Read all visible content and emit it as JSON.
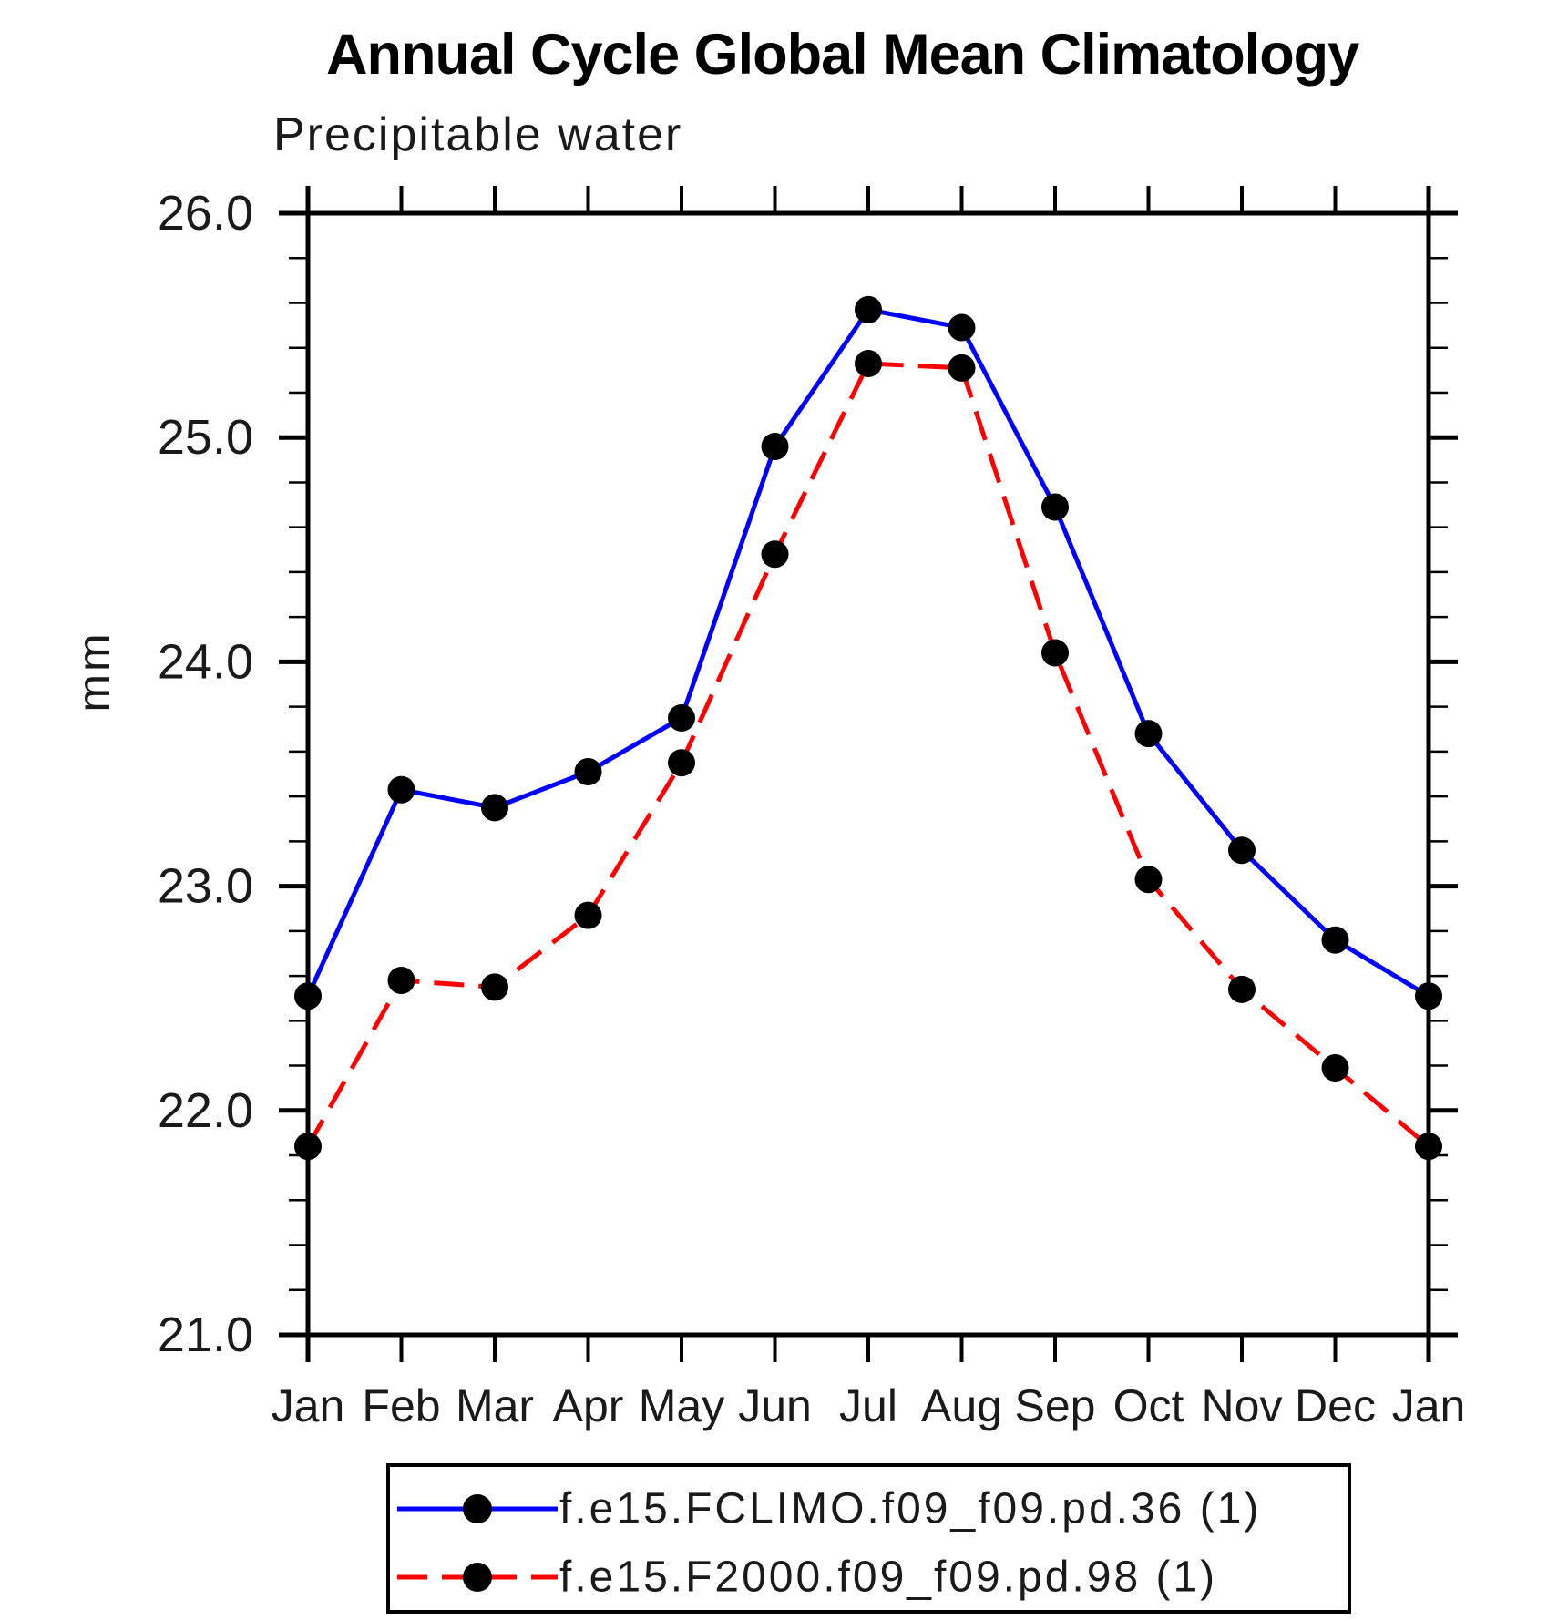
{
  "chart_data": {
    "type": "line",
    "title": "Annual Cycle Global Mean Climatology",
    "subtitle": "Precipitable water",
    "ylabel": "mm",
    "categories": [
      "Jan",
      "Feb",
      "Mar",
      "Apr",
      "May",
      "Jun",
      "Jul",
      "Aug",
      "Sep",
      "Oct",
      "Nov",
      "Dec",
      "Jan"
    ],
    "ylim": [
      21.0,
      26.0
    ],
    "ytick_interval": 1.0,
    "ytick_minor_interval": 0.2,
    "ytick_labels": [
      "21.0",
      "22.0",
      "23.0",
      "24.0",
      "25.0",
      "26.0"
    ],
    "grid": false,
    "legend_position": "bottom",
    "axis_color": "#000000",
    "marker": {
      "shape": "circle",
      "color": "#000000"
    },
    "series": [
      {
        "name": "f.e15.FCLIMO.f09_f09.pd.36 (1)",
        "color": "#0000ff",
        "line_style": "solid",
        "values": [
          22.51,
          23.43,
          23.35,
          23.51,
          23.75,
          24.96,
          25.57,
          25.49,
          24.69,
          23.68,
          23.16,
          22.76,
          22.51
        ]
      },
      {
        "name": "f.e15.F2000.f09_f09.pd.98 (1)",
        "color": "#ff0000",
        "line_style": "dashed",
        "values": [
          21.84,
          22.58,
          22.55,
          22.87,
          23.55,
          24.48,
          25.33,
          25.31,
          24.04,
          23.03,
          22.54,
          22.19,
          21.84
        ]
      }
    ]
  }
}
